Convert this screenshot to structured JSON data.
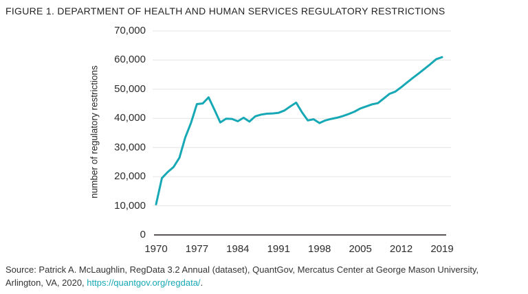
{
  "figure": {
    "title": "FIGURE 1. DEPARTMENT OF HEALTH AND HUMAN SERVICES REGULATORY RESTRICTIONS",
    "source_line1": "Source: Patrick A. McLaughlin, RegData 3.2 Annual (dataset), QuantGov, Mercatus Center at George Mason University,",
    "source_line2_prefix": "Arlington, VA, 2020, ",
    "source_link": "https://quantgov.org/regdata/",
    "source_line2_suffix": "."
  },
  "colors": {
    "line": "#17A8B5",
    "link": "#17A8B5",
    "grid": "#e4e4e4",
    "axis": "#231f20",
    "text": "#2b2b2b"
  },
  "chart_data": {
    "type": "line",
    "title": "FIGURE 1. DEPARTMENT OF HEALTH AND HUMAN SERVICES REGULATORY RESTRICTIONS",
    "xlabel": "",
    "ylabel": "number of regulatory restrictions",
    "x_ticks": [
      1970,
      1977,
      1984,
      1991,
      1998,
      2005,
      2012,
      2019
    ],
    "y_ticks": [
      0,
      10000,
      20000,
      30000,
      40000,
      50000,
      60000,
      70000
    ],
    "xlim": [
      1970,
      2019
    ],
    "ylim": [
      0,
      70000
    ],
    "grid": "horizontal",
    "legend": "none",
    "x": [
      1970,
      1971,
      1972,
      1973,
      1974,
      1975,
      1976,
      1977,
      1978,
      1979,
      1980,
      1981,
      1982,
      1983,
      1984,
      1985,
      1986,
      1987,
      1988,
      1989,
      1990,
      1991,
      1992,
      1993,
      1994,
      1995,
      1996,
      1997,
      1998,
      1999,
      2000,
      2001,
      2002,
      2003,
      2004,
      2005,
      2006,
      2007,
      2008,
      2009,
      2010,
      2011,
      2012,
      2013,
      2014,
      2015,
      2016,
      2017,
      2018,
      2019
    ],
    "values": [
      10500,
      19500,
      21600,
      23300,
      26500,
      33400,
      38500,
      44900,
      45100,
      47200,
      43000,
      38600,
      39900,
      39800,
      39000,
      40200,
      38900,
      40700,
      41300,
      41600,
      41700,
      41900,
      42700,
      44100,
      45400,
      42100,
      39300,
      39700,
      38400,
      39300,
      39800,
      40200,
      40800,
      41500,
      42300,
      43400,
      44100,
      44800,
      45200,
      46800,
      48400,
      49200,
      50700,
      52300,
      53900,
      55400,
      57000,
      58600,
      60300,
      61000
    ]
  }
}
